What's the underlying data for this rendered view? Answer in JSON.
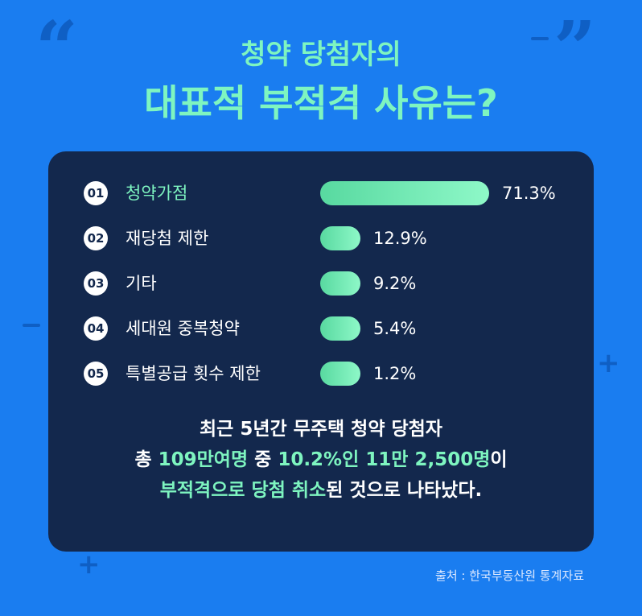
{
  "title": {
    "line1": "청약 당첨자의",
    "line2": "대표적 부적격 사유는?"
  },
  "chart_data": {
    "type": "bar",
    "orientation": "horizontal",
    "categories": [
      "청약가점",
      "재당첨 제한",
      "기타",
      "세대원 중복청약",
      "특별공급 횟수 제한"
    ],
    "numbers": [
      "01",
      "02",
      "03",
      "04",
      "05"
    ],
    "values": [
      71.3,
      12.9,
      9.2,
      5.4,
      1.2
    ],
    "value_labels": [
      "71.3%",
      "12.9%",
      "9.2%",
      "5.4%",
      "1.2%"
    ],
    "unit": "%",
    "highlight_index": 0,
    "colors": {
      "bar_start": "#58d9a0",
      "bar_end": "#8ef8c8",
      "highlight": "#7ef5c0"
    }
  },
  "summary": {
    "line1": "최근 5년간 무주택 청약 당첨자",
    "line2": [
      {
        "text": "총 ",
        "hl": false
      },
      {
        "text": "109만여명",
        "hl": true
      },
      {
        "text": " 중 ",
        "hl": false
      },
      {
        "text": "10.2%인 11만 2,500명",
        "hl": true
      },
      {
        "text": "이",
        "hl": false
      }
    ],
    "line3": [
      {
        "text": "부적격으로 당첨 취소",
        "hl": true
      },
      {
        "text": "된 것으로 나타났다.",
        "hl": false
      }
    ]
  },
  "source": "출처 : 한국부동산원 통계자료",
  "colors": {
    "background": "#1a7df0",
    "panel": "#13284d",
    "accent": "#7ef5c0",
    "decoration": "#0f5fc4"
  }
}
